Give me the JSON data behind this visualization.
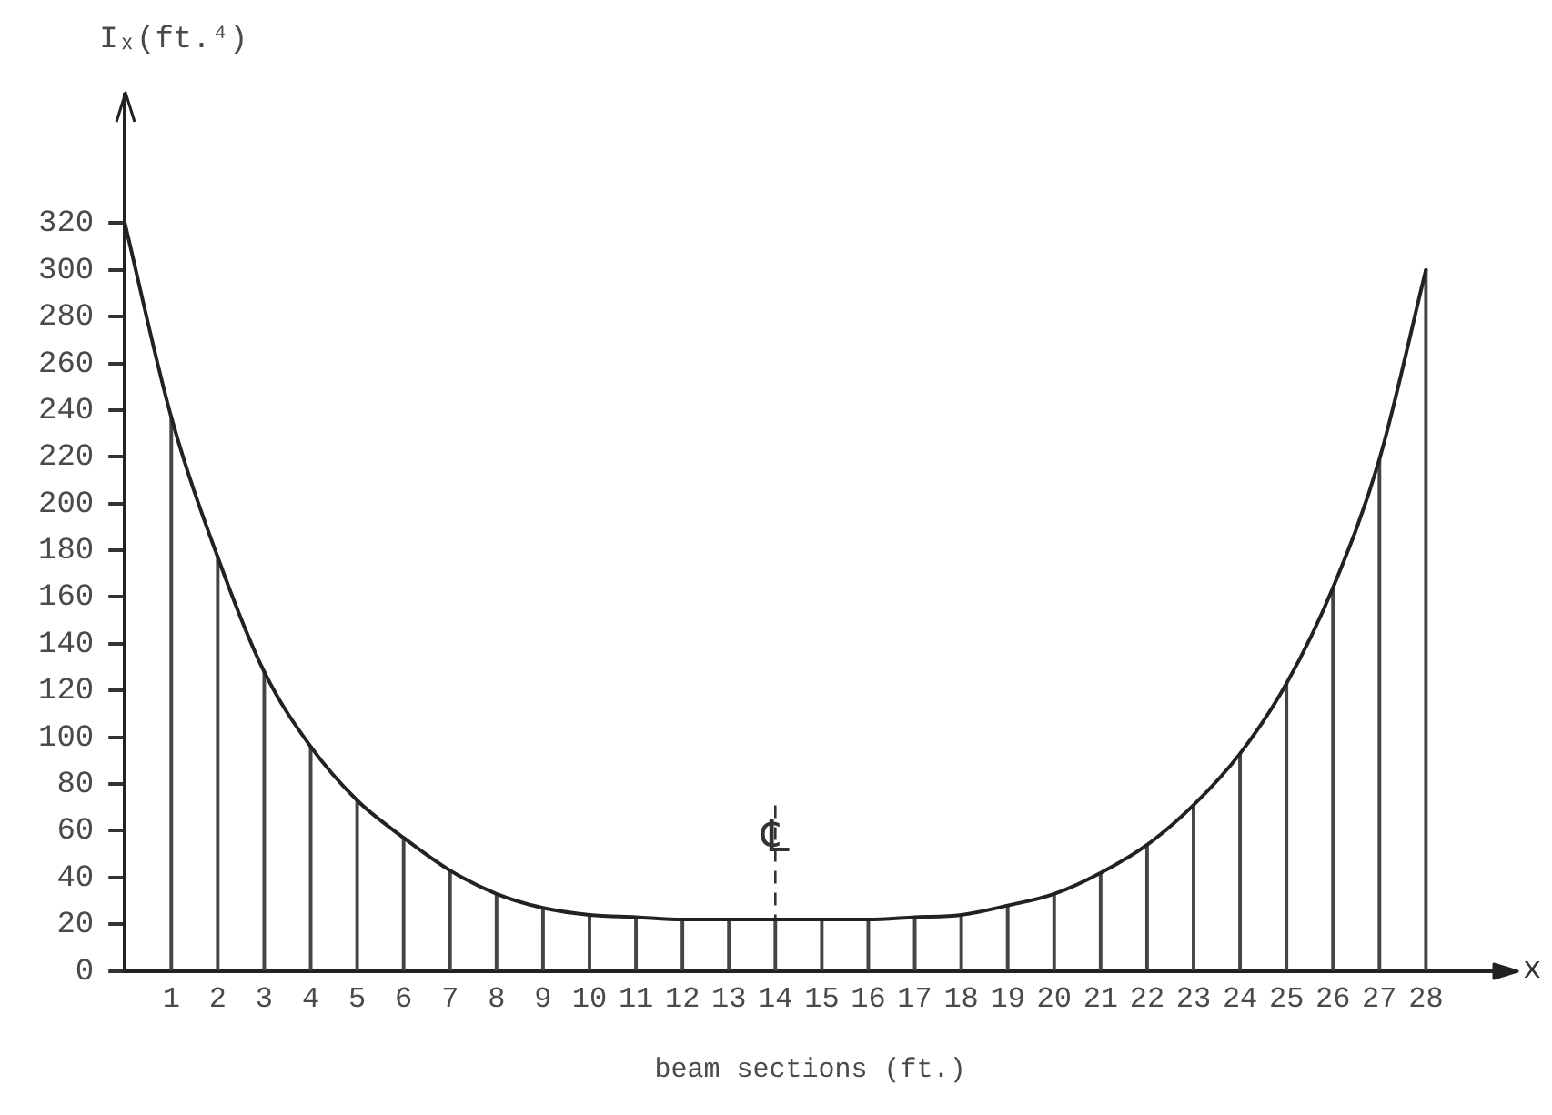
{
  "chart_data": {
    "type": "line",
    "series": [
      {
        "color": "#222222",
        "x": [
          0,
          1,
          2,
          3,
          4,
          5,
          6,
          7,
          8,
          9,
          10,
          11,
          12,
          13,
          14,
          15,
          16,
          17,
          18,
          19,
          20,
          21,
          22,
          23,
          24,
          25,
          26,
          27,
          28
        ],
        "values": [
          320,
          237,
          177,
          128,
          96,
          73,
          57,
          43,
          33,
          27,
          24,
          23,
          22,
          22,
          22,
          22,
          22,
          23,
          24,
          28,
          33,
          42,
          54,
          71,
          93,
          123,
          164,
          219,
          300
        ]
      },
      {
        "type": "bar",
        "color": "#444444",
        "x": [
          1,
          2,
          3,
          4,
          5,
          6,
          7,
          8,
          9,
          10,
          11,
          12,
          13,
          14,
          15,
          16,
          17,
          18,
          19,
          20,
          21,
          22,
          23,
          24,
          25,
          26,
          27,
          28
        ],
        "values": [
          237,
          177,
          128,
          96,
          73,
          57,
          43,
          33,
          27,
          24,
          23,
          22,
          22,
          22,
          22,
          22,
          23,
          24,
          28,
          33,
          42,
          54,
          71,
          93,
          123,
          164,
          219,
          300
        ]
      }
    ],
    "xlabel": "beam sections (ft.)",
    "ylabel": "Iₓ(ft.⁴)",
    "xlim": [
      0,
      29.5
    ],
    "xticks": [
      1,
      2,
      3,
      4,
      5,
      6,
      7,
      8,
      9,
      10,
      11,
      12,
      13,
      14,
      15,
      16,
      17,
      18,
      19,
      20,
      21,
      22,
      23,
      24,
      25,
      26,
      27,
      28
    ],
    "ylim": [
      0,
      375
    ],
    "yticks": [
      0,
      20,
      40,
      60,
      80,
      100,
      120,
      140,
      160,
      180,
      200,
      220,
      240,
      260,
      280,
      300,
      320
    ],
    "grid": false,
    "marker": "none",
    "ref_lines": [
      {
        "axis": "x",
        "value": 14,
        "label": "℄",
        "line_style": "dashed"
      }
    ],
    "annotations": [
      "x"
    ]
  }
}
